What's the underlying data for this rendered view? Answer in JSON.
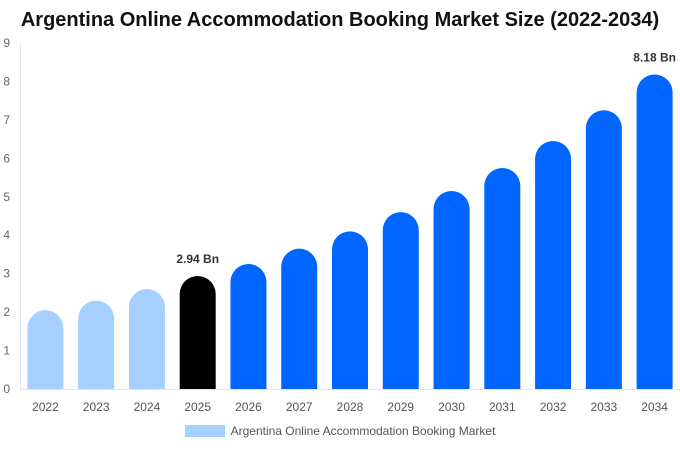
{
  "chart_data": {
    "type": "bar",
    "title": "Argentina Online Accommodation Booking Market Size (2022-2034)",
    "xlabel": "",
    "ylabel": "",
    "ylim": [
      0,
      9
    ],
    "yticks": [
      "0",
      "1",
      "2",
      "3",
      "4",
      "5",
      "6",
      "7",
      "8",
      "9"
    ],
    "categories": [
      "2022",
      "2023",
      "2024",
      "2025",
      "2026",
      "2027",
      "2028",
      "2029",
      "2030",
      "2031",
      "2032",
      "2033",
      "2034"
    ],
    "series": [
      {
        "name": "Argentina Online Accommodation Booking Market",
        "values": [
          2.05,
          2.3,
          2.6,
          2.94,
          3.25,
          3.65,
          4.1,
          4.6,
          5.15,
          5.75,
          6.45,
          7.25,
          8.18
        ]
      }
    ],
    "bar_colors": [
      "#a6d0ff",
      "#a6d0ff",
      "#a6d0ff",
      "#000000",
      "#0066ff",
      "#0066ff",
      "#0066ff",
      "#0066ff",
      "#0066ff",
      "#0066ff",
      "#0066ff",
      "#0066ff",
      "#0066ff"
    ],
    "data_labels": [
      {
        "category": "2025",
        "text": "2.94 Bn"
      },
      {
        "category": "2034",
        "text": "8.18 Bn"
      }
    ],
    "legend": {
      "position": "bottom",
      "label": "Argentina Online Accommodation Booking Market",
      "color": "#a6d0ff"
    },
    "grid": false
  }
}
